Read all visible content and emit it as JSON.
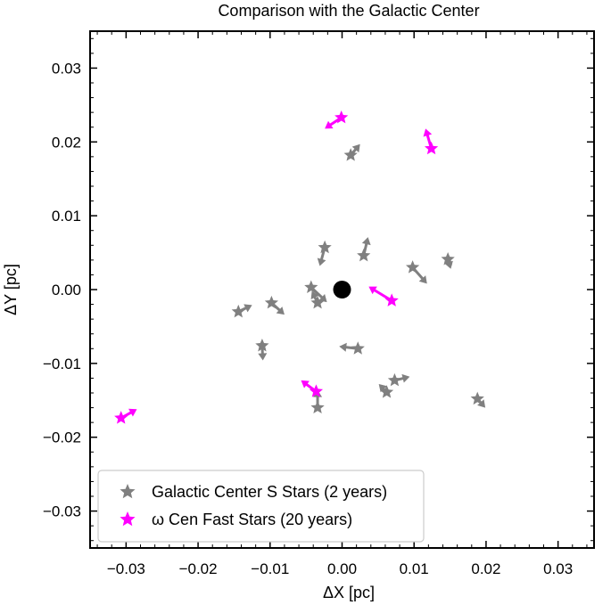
{
  "chart_data": {
    "type": "scatter",
    "title": "Comparison with the Galactic Center",
    "xlabel": "ΔX [pc]",
    "ylabel": "ΔY [pc]",
    "xlim": [
      -0.035,
      0.035
    ],
    "ylim": [
      -0.035,
      0.035
    ],
    "xticks": [
      -0.03,
      -0.02,
      -0.01,
      0.0,
      0.01,
      0.02,
      0.03
    ],
    "xtick_labels": [
      "−0.03",
      "−0.02",
      "−0.01",
      "0.00",
      "0.01",
      "0.02",
      "0.03"
    ],
    "yticks": [
      -0.03,
      -0.02,
      -0.01,
      0.0,
      0.01,
      0.02,
      0.03
    ],
    "ytick_labels": [
      "−0.03",
      "−0.02",
      "−0.01",
      "0.00",
      "0.01",
      "0.02",
      "0.03"
    ],
    "grid": false,
    "legend_placement": "bottom-left",
    "center": {
      "x": 0.0,
      "y": 0.0,
      "color": "#000000"
    },
    "series": [
      {
        "name": "Galactic Center S Stars (2 years)",
        "color": "#808080",
        "marker": "star",
        "points": [
          {
            "x": 0.0012,
            "y": 0.0182,
            "dx": 0.0013,
            "dy": 0.0015
          },
          {
            "x": -0.0024,
            "y": 0.0057,
            "dx": -0.0007,
            "dy": -0.0025
          },
          {
            "x": 0.003,
            "y": 0.0046,
            "dx": 0.0006,
            "dy": 0.0025
          },
          {
            "x": 0.0098,
            "y": 0.003,
            "dx": 0.002,
            "dy": -0.0022
          },
          {
            "x": 0.0147,
            "y": 0.0041,
            "dx": 0.0004,
            "dy": -0.0013
          },
          {
            "x": -0.0043,
            "y": 0.0003,
            "dx": 0.0022,
            "dy": -0.002
          },
          {
            "x": -0.0034,
            "y": -0.0018,
            "dx": -0.0008,
            "dy": 0.0016
          },
          {
            "x": -0.0098,
            "y": -0.0018,
            "dx": 0.0018,
            "dy": -0.0016
          },
          {
            "x": -0.0144,
            "y": -0.003,
            "dx": 0.0019,
            "dy": 0.0009
          },
          {
            "x": -0.0111,
            "y": -0.0076,
            "dx": 0.0001,
            "dy": -0.002
          },
          {
            "x": 0.0022,
            "y": -0.008,
            "dx": -0.0026,
            "dy": 0.0003
          },
          {
            "x": 0.0073,
            "y": -0.0123,
            "dx": 0.0021,
            "dy": 0.0005
          },
          {
            "x": 0.0062,
            "y": -0.0139,
            "dx": -0.0011,
            "dy": 0.0011
          },
          {
            "x": -0.0034,
            "y": -0.016,
            "dx": 0.0,
            "dy": 0.0024
          },
          {
            "x": 0.0188,
            "y": -0.0148,
            "dx": 0.0011,
            "dy": -0.0012
          }
        ]
      },
      {
        "name": "ω Cen Fast Stars (20 years)",
        "color": "#ff00ff",
        "marker": "star",
        "points": [
          {
            "x": -0.0001,
            "y": 0.0233,
            "dx": -0.0023,
            "dy": -0.0015
          },
          {
            "x": 0.0124,
            "y": 0.0191,
            "dx": -0.0008,
            "dy": 0.0027
          },
          {
            "x": 0.0069,
            "y": -0.0015,
            "dx": -0.0032,
            "dy": 0.0019
          },
          {
            "x": -0.0036,
            "y": -0.0138,
            "dx": -0.0021,
            "dy": 0.0015
          },
          {
            "x": -0.0307,
            "y": -0.0174,
            "dx": 0.0022,
            "dy": 0.0012
          }
        ]
      }
    ]
  }
}
